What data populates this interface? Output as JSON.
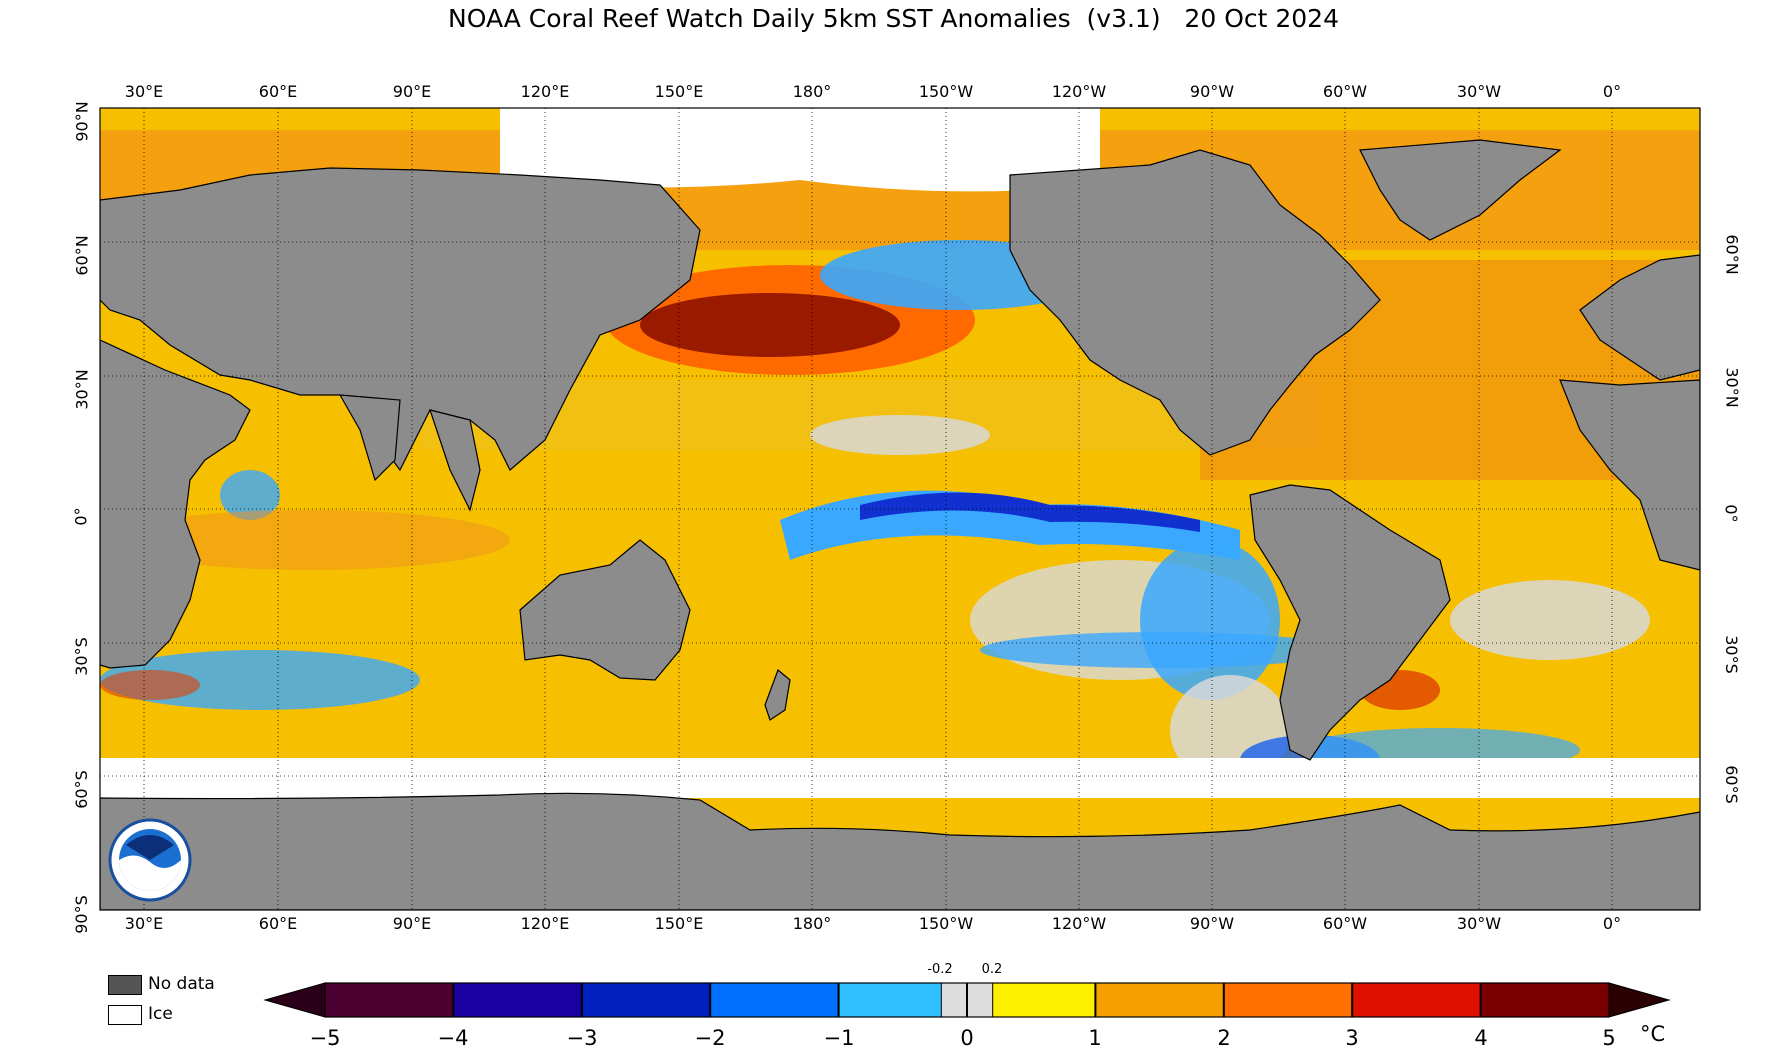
{
  "title": "NOAA Coral Reef Watch Daily 5km SST Anomalies  (v3.1)   20 Oct 2024",
  "longitude_labels": [
    "30°E",
    "60°E",
    "90°E",
    "120°E",
    "150°E",
    "180°",
    "150°W",
    "120°W",
    "90°W",
    "60°W",
    "30°W",
    "0°"
  ],
  "latitude_labels_left": [
    "90°N",
    "60°N",
    "30°N",
    "0°",
    "30°S",
    "60°S",
    "90°S"
  ],
  "latitude_labels_right": [
    "60°N",
    "30°N",
    "0°",
    "30°S",
    "60°S"
  ],
  "legend": {
    "no_data": "No data",
    "ice": "Ice",
    "no_data_color": "#555555",
    "ice_color": "#ffffff"
  },
  "colorbar": {
    "ticks": [
      "−5",
      "−4",
      "−3",
      "−2",
      "−1",
      "0",
      "1",
      "2",
      "3",
      "4",
      "5"
    ],
    "small_ticks": [
      "-0.2",
      "0.2"
    ],
    "unit": "°C",
    "colors": [
      "#4a0030",
      "#1a00a0",
      "#0020c0",
      "#0070ff",
      "#30c0ff",
      "#dddddd",
      "#fff000",
      "#f5a000",
      "#ff7000",
      "#e01000",
      "#7a0000"
    ]
  },
  "map_colors": {
    "land": "#8c8c8c",
    "ice": "#ffffff",
    "warm": "#f7c000",
    "hot": "#ff7a00",
    "very_hot": "#8a1000",
    "cool": "#3aa8ff",
    "cold": "#1030d0",
    "neutral": "#d8d8d8"
  }
}
